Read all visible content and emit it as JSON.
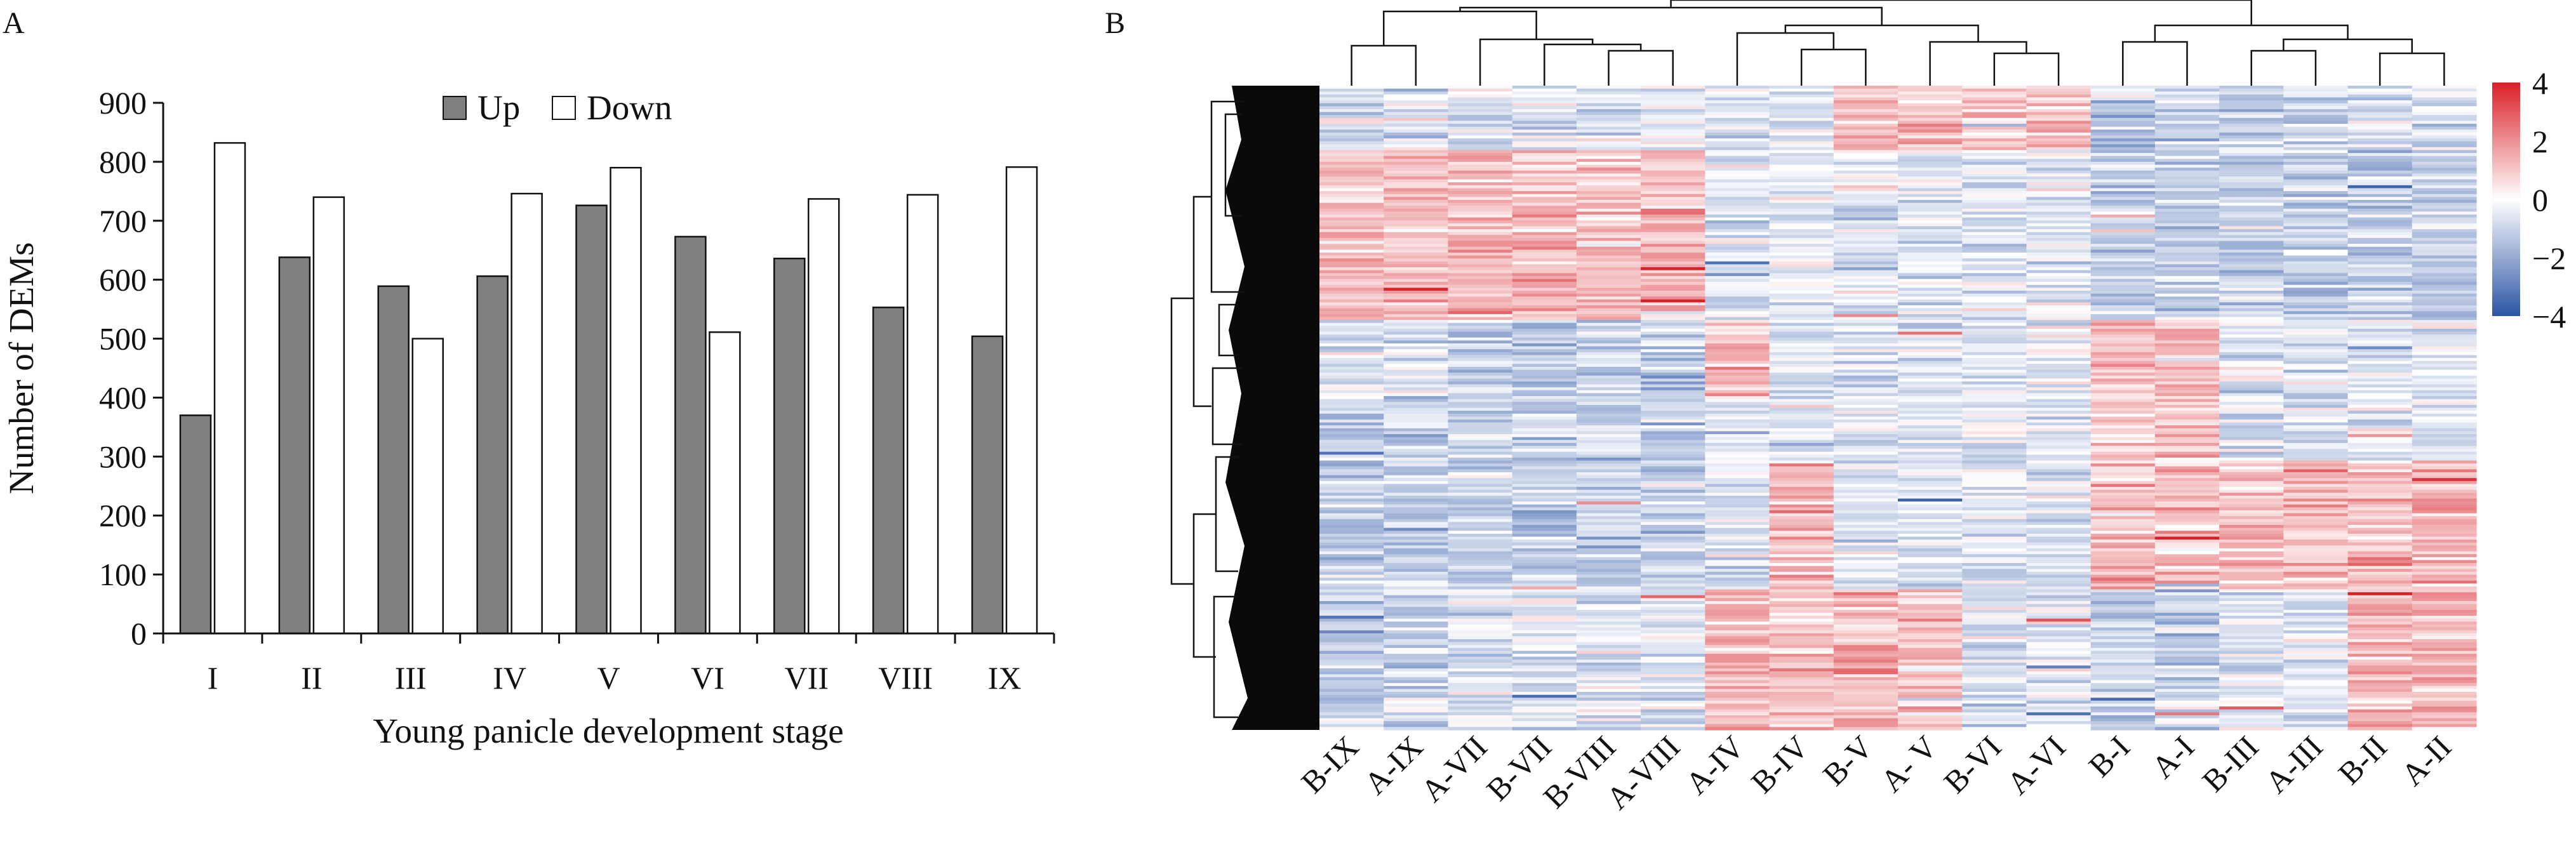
{
  "chart_data": [
    {
      "type": "bar",
      "panel": "A",
      "categories": [
        "I",
        "II",
        "III",
        "IV",
        "V",
        "VI",
        "VII",
        "VIII",
        "IX"
      ],
      "series": [
        {
          "name": "Up",
          "color": "#808080",
          "values": [
            370,
            638,
            589,
            606,
            726,
            673,
            636,
            553,
            504
          ]
        },
        {
          "name": "Down",
          "color": "#ffffff",
          "values": [
            832,
            740,
            500,
            746,
            790,
            511,
            737,
            744,
            791
          ]
        }
      ],
      "xlabel": "Young panicle development stage",
      "ylabel": "Number of DEMs",
      "ylim": [
        0,
        900
      ],
      "yticks": [
        0,
        100,
        200,
        300,
        400,
        500,
        600,
        700,
        800,
        900
      ],
      "legend": "top-center"
    },
    {
      "type": "heatmap",
      "panel": "B",
      "columns": [
        "B-IX",
        "A-IX",
        "A-VII",
        "B-VII",
        "B-VIII",
        "A-VIII",
        "A-IV",
        "B-IV",
        "B-V",
        "A- V",
        "B-VI",
        "A-VI",
        "B-I",
        "A-I",
        "B-III",
        "A-III",
        "B-II",
        "A-II"
      ],
      "colorbar": {
        "range": [
          -4,
          4
        ],
        "ticks": [
          "4",
          "2",
          "0",
          "−2",
          "−4"
        ],
        "low_color": "#2c55a5",
        "mid_color": "#ffffff",
        "high_color": "#d92027"
      },
      "row_dendrogram": true,
      "column_dendrogram": true
    }
  ]
}
